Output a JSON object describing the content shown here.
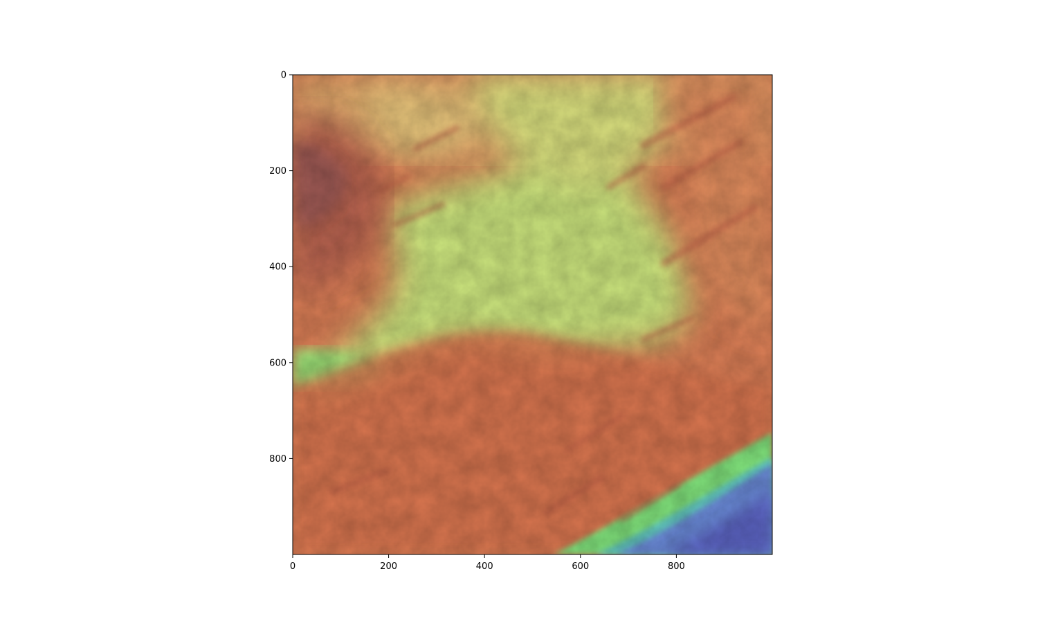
{
  "chart_data": {
    "type": "heatmap",
    "title": "",
    "xlabel": "",
    "ylabel": "",
    "xlim": [
      0,
      1000
    ],
    "ylim": [
      1000,
      0
    ],
    "x_ticks": [
      0,
      200,
      400,
      600,
      800
    ],
    "y_ticks": [
      0,
      200,
      400,
      600,
      800
    ],
    "x_tick_labels": [
      "0",
      "200",
      "400",
      "600",
      "800"
    ],
    "y_tick_labels": [
      "0",
      "200",
      "400",
      "600",
      "800"
    ],
    "image": "shaded-relief elevation raster",
    "colormap": [
      "#5a62c8",
      "#6fa2e6",
      "#7fe07a",
      "#cde47a",
      "#e6c878",
      "#e48e5a",
      "#d06a4a",
      "#9a5a5a"
    ],
    "grid": false,
    "legend": "none"
  }
}
